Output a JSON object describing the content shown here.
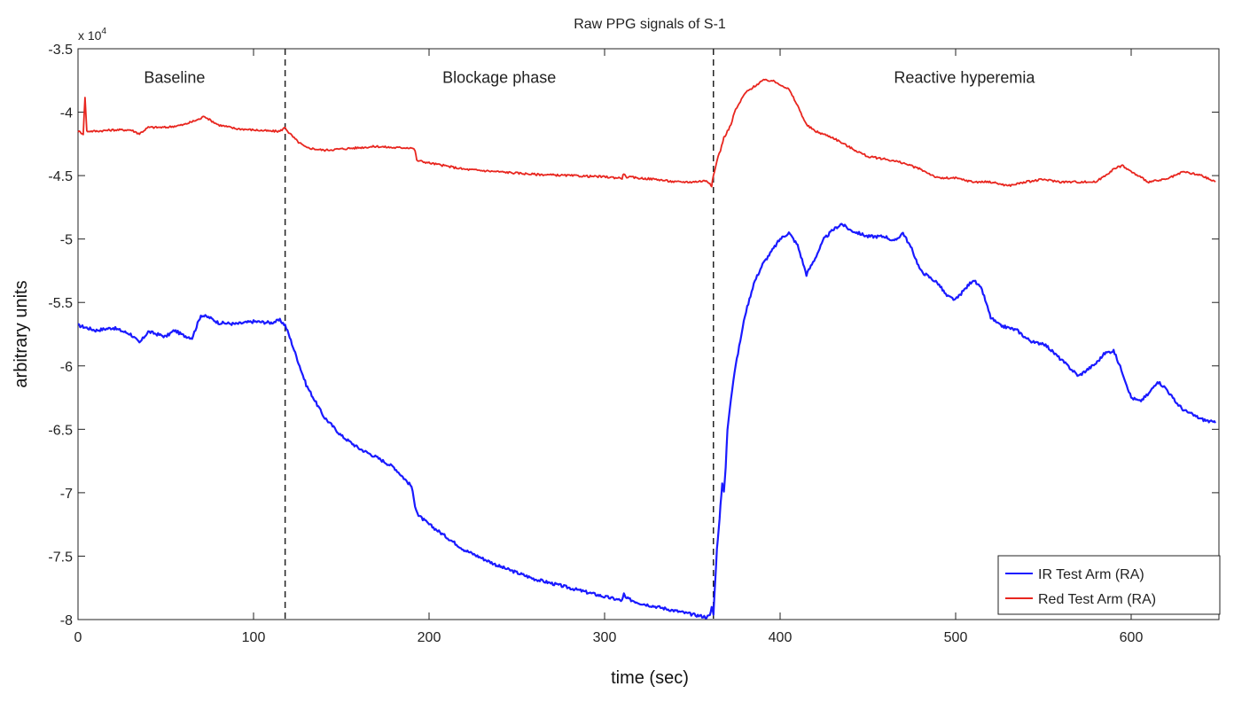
{
  "chart_data": {
    "type": "line",
    "title": "Raw PPG signals of S-1",
    "xlabel": "time (sec)",
    "ylabel": "arbitrary units",
    "y_multiplier": "x 10",
    "y_multiplier_exponent": "4",
    "xlim": [
      0,
      650
    ],
    "ylim": [
      -8,
      -3.5
    ],
    "x_ticks": [
      0,
      100,
      200,
      300,
      400,
      500,
      600
    ],
    "x_tick_labels": [
      "0",
      "100",
      "200",
      "300",
      "400",
      "500",
      "600"
    ],
    "y_ticks": [
      -3.5,
      -4,
      -4.5,
      -5,
      -5.5,
      -6,
      -6.5,
      -7,
      -7.5,
      -8
    ],
    "y_tick_labels": [
      "-3.5",
      "-4",
      "-4.5",
      "-5",
      "-5.5",
      "-6",
      "-6.5",
      "-7",
      "-7.5",
      "-8"
    ],
    "grid": false,
    "legend_position": "bottom-right",
    "phase_markers": [
      118,
      362
    ],
    "phase_labels": [
      {
        "text": "Baseline",
        "x": 55,
        "y": -3.77
      },
      {
        "text": "Blockage phase",
        "x": 240,
        "y": -3.77
      },
      {
        "text": "Reactive hyperemia",
        "x": 505,
        "y": -3.77
      }
    ],
    "series": [
      {
        "name": "IR Test Arm (RA)",
        "color": "#1a1aff",
        "noise": 0.012,
        "x": [
          0,
          10,
          20,
          30,
          35,
          40,
          50,
          55,
          60,
          65,
          70,
          75,
          80,
          90,
          100,
          110,
          115,
          118,
          120,
          125,
          130,
          140,
          150,
          160,
          170,
          180,
          190,
          192,
          194,
          200,
          220,
          240,
          260,
          280,
          300,
          310,
          311,
          312,
          320,
          330,
          340,
          350,
          358,
          360,
          361,
          362,
          363,
          364,
          365,
          366,
          367,
          368,
          369,
          370,
          372,
          374,
          376,
          378,
          380,
          385,
          390,
          395,
          400,
          405,
          410,
          415,
          420,
          425,
          430,
          435,
          440,
          450,
          460,
          465,
          470,
          475,
          480,
          485,
          490,
          495,
          500,
          505,
          510,
          515,
          520,
          525,
          530,
          535,
          540,
          545,
          550,
          560,
          570,
          580,
          585,
          590,
          595,
          600,
          605,
          610,
          615,
          620,
          625,
          630,
          640,
          648
        ],
        "y": [
          -5.68,
          -5.72,
          -5.7,
          -5.75,
          -5.82,
          -5.73,
          -5.77,
          -5.72,
          -5.76,
          -5.78,
          -5.6,
          -5.62,
          -5.66,
          -5.67,
          -5.65,
          -5.66,
          -5.64,
          -5.68,
          -5.75,
          -5.95,
          -6.15,
          -6.4,
          -6.55,
          -6.65,
          -6.72,
          -6.8,
          -6.95,
          -7.1,
          -7.18,
          -7.25,
          -7.45,
          -7.58,
          -7.68,
          -7.75,
          -7.82,
          -7.85,
          -7.8,
          -7.83,
          -7.87,
          -7.9,
          -7.93,
          -7.96,
          -7.98,
          -7.97,
          -7.9,
          -7.95,
          -7.7,
          -7.45,
          -7.3,
          -7.1,
          -6.92,
          -7.0,
          -6.8,
          -6.5,
          -6.25,
          -6.05,
          -5.9,
          -5.75,
          -5.6,
          -5.35,
          -5.2,
          -5.1,
          -5.0,
          -4.95,
          -5.05,
          -5.28,
          -5.15,
          -5.0,
          -4.93,
          -4.88,
          -4.93,
          -4.98,
          -4.98,
          -5.02,
          -4.95,
          -5.08,
          -5.25,
          -5.3,
          -5.35,
          -5.45,
          -5.48,
          -5.4,
          -5.32,
          -5.4,
          -5.62,
          -5.68,
          -5.7,
          -5.72,
          -5.78,
          -5.82,
          -5.82,
          -5.95,
          -6.08,
          -5.98,
          -5.9,
          -5.88,
          -6.05,
          -6.25,
          -6.28,
          -6.22,
          -6.12,
          -6.18,
          -6.28,
          -6.35,
          -6.42,
          -6.45
        ]
      },
      {
        "name": "Red Test Arm (RA)",
        "color": "#e8261f",
        "noise": 0.008,
        "x": [
          0,
          3,
          4,
          5,
          10,
          20,
          30,
          35,
          40,
          50,
          60,
          70,
          72,
          75,
          80,
          90,
          100,
          110,
          115,
          118,
          120,
          125,
          130,
          140,
          150,
          160,
          170,
          180,
          190,
          192,
          193,
          200,
          220,
          240,
          260,
          280,
          300,
          310,
          311,
          312,
          320,
          330,
          340,
          350,
          358,
          360,
          361,
          362,
          363,
          364,
          366,
          368,
          370,
          372,
          374,
          376,
          380,
          385,
          390,
          395,
          400,
          405,
          410,
          415,
          420,
          430,
          440,
          450,
          460,
          470,
          480,
          490,
          500,
          510,
          520,
          530,
          540,
          550,
          560,
          570,
          580,
          590,
          595,
          600,
          610,
          620,
          630,
          640,
          648
        ],
        "y": [
          -4.15,
          -4.17,
          -3.88,
          -4.15,
          -4.15,
          -4.14,
          -4.14,
          -4.17,
          -4.12,
          -4.12,
          -4.1,
          -4.05,
          -4.03,
          -4.06,
          -4.1,
          -4.13,
          -4.14,
          -4.15,
          -4.15,
          -4.12,
          -4.16,
          -4.23,
          -4.28,
          -4.3,
          -4.29,
          -4.28,
          -4.27,
          -4.28,
          -4.28,
          -4.3,
          -4.38,
          -4.4,
          -4.45,
          -4.47,
          -4.49,
          -4.5,
          -4.51,
          -4.52,
          -4.48,
          -4.51,
          -4.52,
          -4.53,
          -4.55,
          -4.55,
          -4.54,
          -4.56,
          -4.58,
          -4.5,
          -4.45,
          -4.38,
          -4.3,
          -4.2,
          -4.15,
          -4.1,
          -4.0,
          -3.95,
          -3.85,
          -3.8,
          -3.75,
          -3.75,
          -3.78,
          -3.82,
          -3.95,
          -4.1,
          -4.15,
          -4.2,
          -4.28,
          -4.35,
          -4.37,
          -4.4,
          -4.45,
          -4.52,
          -4.52,
          -4.55,
          -4.55,
          -4.58,
          -4.55,
          -4.53,
          -4.55,
          -4.55,
          -4.55,
          -4.45,
          -4.42,
          -4.47,
          -4.55,
          -4.53,
          -4.47,
          -4.5,
          -4.55
        ]
      }
    ]
  }
}
